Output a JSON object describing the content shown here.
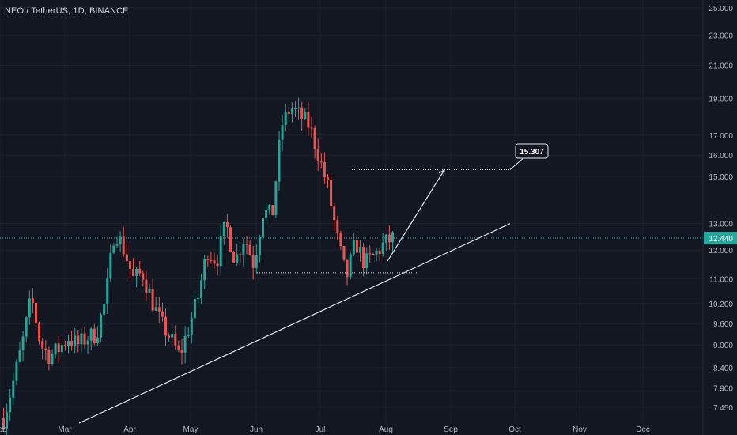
{
  "header": {
    "symbol_title": "NEO / TetherUS, 1D, BINANCE"
  },
  "colors": {
    "background": "#131722",
    "grid": "#1e222d",
    "axis_text": "#b2b5be",
    "up": "#26a69a",
    "down": "#ef5350",
    "price_line": "#26a69a",
    "drawing": "#e0e3eb"
  },
  "chart_data": {
    "type": "candlestick",
    "scale": "log",
    "ylim": [
      7.1,
      25.6
    ],
    "y_ticks": [
      "25.000",
      "23.000",
      "21.000",
      "19.000",
      "17.000",
      "16.000",
      "15.000",
      "13.000",
      "12.000",
      "11.000",
      "10.200",
      "9.600",
      "9.000",
      "8.400",
      "7.900",
      "7.450"
    ],
    "x_ticks": [
      "Feb",
      "Mar",
      "Apr",
      "May",
      "Jun",
      "Jul",
      "Aug",
      "Sep",
      "Oct",
      "Nov",
      "Dec"
    ],
    "last_price": "12.440",
    "annotation": {
      "label": "15.307",
      "level": 15.307
    },
    "support_level": 11.2,
    "trendline": {
      "from": [
        "Mar",
        7.1
      ],
      "to": [
        "Sep",
        13.0
      ]
    },
    "projection": {
      "from": [
        "Aug",
        11.6
      ],
      "to": [
        "Aug",
        15.3
      ]
    },
    "ohlc_keypoints": [
      [
        "Feb",
        7.2
      ],
      [
        "Feb",
        8.0
      ],
      [
        "Feb",
        9.0
      ],
      [
        "Feb",
        10.4
      ],
      [
        "Mar",
        9.0
      ],
      [
        "Mar",
        8.7
      ],
      [
        "Mar",
        8.9
      ],
      [
        "Mar",
        9.2
      ],
      [
        "Mar",
        9.0
      ],
      [
        "Mar",
        9.2
      ],
      [
        "Mar",
        9.3
      ],
      [
        "Mar",
        10.3
      ],
      [
        "Apr",
        12.8
      ],
      [
        "Apr",
        12.0
      ],
      [
        "Apr",
        11.0
      ],
      [
        "Apr",
        11.2
      ],
      [
        "Apr",
        10.3
      ],
      [
        "May",
        9.6
      ],
      [
        "May",
        9.2
      ],
      [
        "May",
        8.7
      ],
      [
        "May",
        9.5
      ],
      [
        "May",
        10.4
      ],
      [
        "May",
        12.0
      ],
      [
        "May",
        11.6
      ],
      [
        "Jun",
        13.0
      ],
      [
        "Jun",
        11.6
      ],
      [
        "Jun",
        12.5
      ],
      [
        "Jun",
        11.5
      ],
      [
        "Jun",
        13.5
      ],
      [
        "Jun",
        13.3
      ],
      [
        "Jun",
        17.5
      ],
      [
        "Jun",
        18.5
      ],
      [
        "Jul",
        18.0
      ],
      [
        "Jul",
        17.5
      ],
      [
        "Jul",
        16.0
      ],
      [
        "Jul",
        14.5
      ],
      [
        "Jul",
        12.5
      ],
      [
        "Jul",
        11.0
      ],
      [
        "Jul",
        12.3
      ],
      [
        "Jul",
        11.5
      ],
      [
        "Jul",
        11.8
      ],
      [
        "Aug",
        12.2
      ],
      [
        "Aug",
        12.44
      ]
    ]
  }
}
